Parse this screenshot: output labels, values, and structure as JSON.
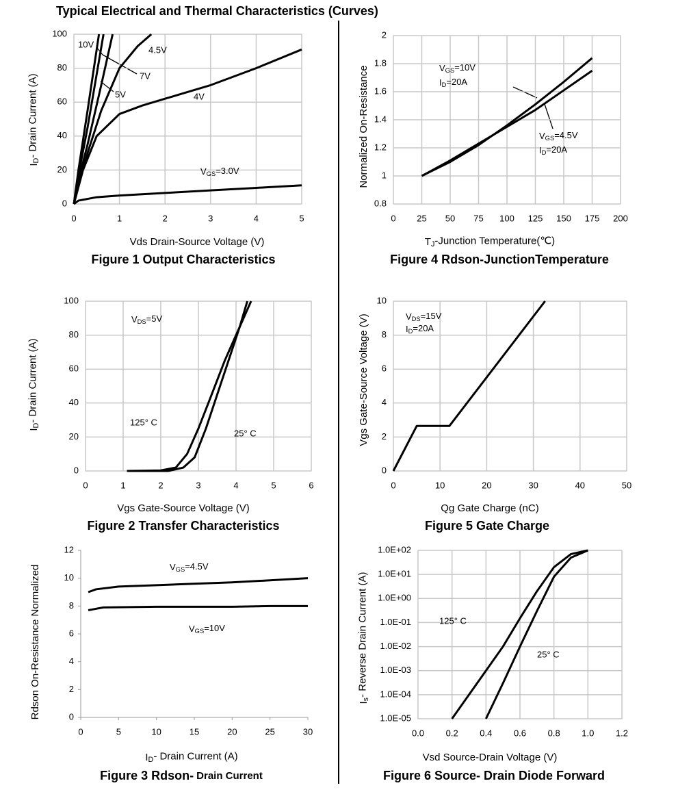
{
  "title": "Typical Electrical and Thermal Characteristics (Curves)",
  "chart_data": [
    {
      "type": "line",
      "caption": "Figure 1 Output Characteristics",
      "x_label": "Vds Drain-Source Voltage (V)",
      "y_label": [
        "I",
        "D",
        "- Drain Current (A)"
      ],
      "xlim": [
        0,
        5
      ],
      "ylim": [
        0,
        100
      ],
      "xticks": [
        0,
        1,
        2,
        3,
        4,
        5
      ],
      "yticks": [
        0,
        20,
        40,
        60,
        80,
        100
      ],
      "grid": true,
      "color": "#000000",
      "series": [
        {
          "name": "10V",
          "x": [
            0,
            0.1,
            0.3,
            0.55
          ],
          "values": [
            0,
            20,
            55,
            100
          ]
        },
        {
          "name": "7V",
          "x": [
            0,
            0.1,
            0.3,
            0.65
          ],
          "values": [
            0,
            17,
            45,
            100
          ]
        },
        {
          "name": "5V",
          "x": [
            0,
            0.1,
            0.3,
            0.6,
            0.85
          ],
          "values": [
            0,
            14,
            35,
            70,
            100
          ]
        },
        {
          "name": "4.5V",
          "x": [
            0,
            0.1,
            0.3,
            0.6,
            1,
            1.4,
            1.7
          ],
          "values": [
            0,
            11,
            30,
            55,
            80,
            93,
            100
          ]
        },
        {
          "name": "4V",
          "x": [
            0,
            0.2,
            0.5,
            1,
            1.5,
            2,
            3,
            4,
            5
          ],
          "values": [
            0,
            20,
            40,
            53,
            58,
            62,
            70,
            80,
            91
          ]
        },
        {
          "name": [
            "V",
            "GS",
            "=3.0V"
          ],
          "x": [
            0,
            0.1,
            0.5,
            1,
            2,
            3,
            4,
            5
          ],
          "values": [
            0,
            2,
            4,
            5,
            6.5,
            8,
            9.5,
            11
          ]
        }
      ]
    },
    {
      "type": "line",
      "caption": "Figure 2 Transfer Characteristics",
      "x_label": "Vgs Gate-Source Voltage (V)",
      "y_label": [
        "I",
        "D",
        "- Drain Current (A)"
      ],
      "xlim": [
        0,
        6
      ],
      "ylim": [
        0,
        100
      ],
      "xticks": [
        0,
        1,
        2,
        3,
        4,
        5,
        6
      ],
      "yticks": [
        0,
        20,
        40,
        60,
        80,
        100
      ],
      "grid": true,
      "color": "#000000",
      "annotations": [
        [
          "V",
          "DS",
          "=5V"
        ]
      ],
      "series": [
        {
          "name": "125° C",
          "x": [
            1.1,
            2,
            2.4,
            2.7,
            3,
            3.3,
            3.7,
            4.2,
            4.4
          ],
          "values": [
            0,
            0.3,
            2,
            10,
            25,
            42,
            65,
            90,
            100
          ]
        },
        {
          "name": "25° C",
          "x": [
            1.1,
            2.2,
            2.6,
            2.9,
            3.2,
            3.5,
            3.8,
            4.1,
            4.3
          ],
          "values": [
            0,
            0,
            2,
            8,
            25,
            45,
            65,
            85,
            100
          ]
        }
      ]
    },
    {
      "type": "line",
      "caption": "Figure 3 Rdson-",
      "caption_small": "Drain Current",
      "x_label": [
        "I",
        "D",
        "- Drain Current (A)"
      ],
      "y_label": "Rdson On-Resistance Normalized",
      "xlim": [
        0,
        30
      ],
      "ylim": [
        0,
        12
      ],
      "xticks": [
        0,
        5,
        10,
        15,
        20,
        25,
        30
      ],
      "yticks": [
        0,
        2,
        4,
        6,
        8,
        10,
        12
      ],
      "grid": false,
      "color": "#000000",
      "series": [
        {
          "name": [
            "V",
            "GS",
            "=4.5V"
          ],
          "x": [
            1,
            2,
            5,
            10,
            15,
            20,
            25,
            30
          ],
          "values": [
            9,
            9.2,
            9.4,
            9.5,
            9.6,
            9.7,
            9.85,
            10
          ]
        },
        {
          "name": [
            "V",
            "GS",
            "=10V"
          ],
          "x": [
            1,
            3,
            10,
            15,
            20,
            25,
            30
          ],
          "values": [
            7.7,
            7.9,
            7.95,
            7.95,
            7.95,
            8,
            8
          ]
        }
      ]
    },
    {
      "type": "line",
      "caption": "Figure 4 Rdson-JunctionTemperature",
      "x_label": [
        "T",
        "J",
        "-Junction Temperature(℃)"
      ],
      "y_label": "Normalized On-Resistance",
      "xlim": [
        0,
        200
      ],
      "ylim": [
        0.8,
        2
      ],
      "xticks": [
        0,
        25,
        50,
        75,
        100,
        125,
        150,
        175,
        200
      ],
      "yticks": [
        0.8,
        1,
        1.2,
        1.4,
        1.6,
        1.8,
        2
      ],
      "grid": true,
      "color": "#000000",
      "annotations": [
        [
          "I",
          "D",
          "=20A"
        ],
        [
          "I",
          "D",
          "=20A"
        ]
      ],
      "series": [
        {
          "name": [
            "V",
            "GS",
            "=10V"
          ],
          "x": [
            25,
            50,
            75,
            100,
            125,
            150,
            175
          ],
          "values": [
            1,
            1.1,
            1.22,
            1.36,
            1.51,
            1.67,
            1.84
          ]
        },
        {
          "name": [
            "V",
            "GS",
            "=4.5V"
          ],
          "x": [
            25,
            50,
            75,
            100,
            125,
            150,
            175
          ],
          "values": [
            1,
            1.11,
            1.23,
            1.35,
            1.47,
            1.61,
            1.75
          ]
        }
      ]
    },
    {
      "type": "line",
      "caption": "Figure 5 Gate Charge",
      "x_label": "Qg Gate Charge (nC)",
      "y_label": "Vgs Gate-Source Voltage (V)",
      "xlim": [
        0,
        50
      ],
      "ylim": [
        0,
        10
      ],
      "xticks": [
        0,
        10,
        20,
        30,
        40,
        50
      ],
      "yticks": [
        0,
        2,
        4,
        6,
        8,
        10
      ],
      "grid": true,
      "color": "#000000",
      "annotations": [
        [
          "V",
          "DS",
          "=15V"
        ],
        [
          "I",
          "D",
          "=20A"
        ]
      ],
      "series": [
        {
          "x": [
            0,
            5,
            12,
            32.5
          ],
          "values": [
            0,
            2.65,
            2.65,
            10
          ]
        }
      ]
    },
    {
      "type": "line",
      "caption": "Figure 6 Source- Drain Diode Forward",
      "x_label": "Vsd Source-Drain Voltage (V)",
      "y_label": [
        "I",
        "s",
        "- Reverse Drain Current (A)"
      ],
      "xlim": [
        0,
        1.2
      ],
      "ylim": [
        1e-05,
        100
      ],
      "log_y": true,
      "grid": true,
      "color": "#000000",
      "xticks": [
        {
          "value": 0,
          "label": "0.0"
        },
        {
          "value": 0.2,
          "label": "0.2"
        },
        {
          "value": 0.4,
          "label": "0.4"
        },
        {
          "value": 0.6,
          "label": "0.6"
        },
        {
          "value": 0.8,
          "label": "0.8"
        },
        {
          "value": 1,
          "label": "1.0"
        },
        {
          "value": 1.2,
          "label": "1.2"
        }
      ],
      "yticks": [
        {
          "value": 1e-05,
          "label": "1.0E-05"
        },
        {
          "value": 0.0001,
          "label": "1.0E-04"
        },
        {
          "value": 0.001,
          "label": "1.0E-03"
        },
        {
          "value": 0.01,
          "label": "1.0E-02"
        },
        {
          "value": 0.1,
          "label": "1.0E-01"
        },
        {
          "value": 1,
          "label": "1.0E+00"
        },
        {
          "value": 10,
          "label": "1.0E+01"
        },
        {
          "value": 100,
          "label": "1.0E+02"
        }
      ],
      "series": [
        {
          "name": "125° C",
          "x": [
            0.2,
            0.3,
            0.4,
            0.5,
            0.6,
            0.7,
            0.8,
            0.9,
            1.0
          ],
          "values": [
            1e-05,
            0.0001,
            0.001,
            0.01,
            0.15,
            2,
            20,
            70,
            100
          ]
        },
        {
          "name": "25° C",
          "x": [
            0.4,
            0.5,
            0.6,
            0.7,
            0.8,
            0.9,
            1.0
          ],
          "values": [
            1e-05,
            0.0003,
            0.01,
            0.3,
            8,
            50,
            100
          ]
        }
      ]
    }
  ]
}
